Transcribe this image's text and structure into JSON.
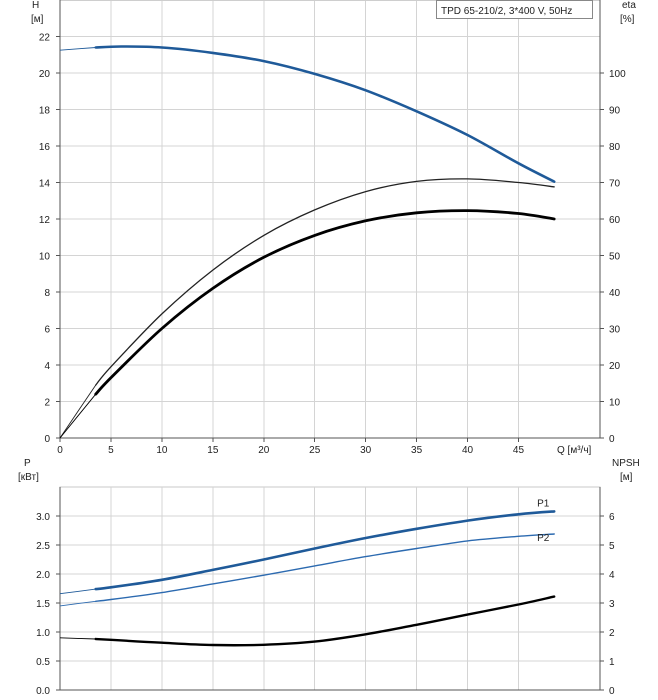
{
  "chart_data": [
    {
      "type": "line",
      "title": "TPD 65-210/2, 3*400 V, 50Hz",
      "xlabel": "Q [м³/ч]",
      "x_unit": "Q [м³/ч]",
      "ylabel_left": "H",
      "ylabel_left_unit": "[м]",
      "ylabel_right": "eta",
      "ylabel_right_unit": "[%]",
      "xlim": [
        0,
        53
      ],
      "ylim_left": [
        0,
        24
      ],
      "ylim_right": [
        0,
        120
      ],
      "x_ticks": [
        0,
        5,
        10,
        15,
        20,
        25,
        30,
        35,
        40,
        45
      ],
      "y_ticks_left": [
        0,
        2,
        4,
        6,
        8,
        10,
        12,
        14,
        16,
        18,
        20,
        22
      ],
      "y_ticks_right": [
        0,
        10,
        20,
        30,
        40,
        50,
        60,
        70,
        80,
        90,
        100
      ],
      "grid": true,
      "series": [
        {
          "name": "",
          "axis": "left",
          "color": "#1f5a99",
          "x": [
            0,
            3.5,
            6,
            10,
            15,
            20,
            25,
            30,
            35,
            40,
            45,
            48.5
          ],
          "values": [
            21.25,
            21.4,
            21.45,
            21.4,
            21.1,
            20.65,
            19.95,
            19.05,
            17.9,
            16.6,
            15.05,
            14.05
          ]
        },
        {
          "name": "",
          "axis": "right",
          "color": "#222222",
          "x": [
            0,
            3.5,
            5,
            10,
            15,
            20,
            25,
            30,
            35,
            40,
            45,
            48.5
          ],
          "values": [
            0,
            14.5,
            19.5,
            34,
            46,
            55.5,
            62.5,
            67.5,
            70.3,
            71,
            70,
            68.8
          ]
        },
        {
          "name": "",
          "axis": "right",
          "color": "#000000",
          "x": [
            0,
            3.5,
            5,
            10,
            15,
            20,
            25,
            30,
            35,
            40,
            45,
            48.5
          ],
          "values": [
            0,
            12,
            16.5,
            30,
            41,
            49.5,
            55.5,
            59.5,
            61.7,
            62.3,
            61.5,
            60
          ]
        }
      ]
    },
    {
      "type": "line",
      "xlabel": "",
      "ylabel_left": "P",
      "ylabel_left_unit": "[кВт]",
      "ylabel_right": "NPSH",
      "ylabel_right_unit": "[м]",
      "xlim": [
        0,
        53
      ],
      "ylim_left": [
        0,
        3.5
      ],
      "ylim_right": [
        0,
        7
      ],
      "y_ticks_left": [
        0.0,
        0.5,
        1.0,
        1.5,
        2.0,
        2.5,
        3.0
      ],
      "y_tick_labels_left": [
        "0.0",
        "0.5",
        "1.0",
        "1.5",
        "2.0",
        "2.5",
        "3.0"
      ],
      "y_ticks_right": [
        0,
        1,
        2,
        3,
        4,
        5,
        6
      ],
      "grid": true,
      "series": [
        {
          "name": "P1",
          "axis": "left",
          "color": "#1f5a99",
          "x": [
            0,
            3.5,
            5,
            10,
            15,
            20,
            25,
            30,
            35,
            40,
            45,
            48.5
          ],
          "values": [
            1.66,
            1.74,
            1.77,
            1.9,
            2.07,
            2.25,
            2.44,
            2.62,
            2.78,
            2.92,
            3.03,
            3.08
          ]
        },
        {
          "name": "P2",
          "axis": "left",
          "color": "#2c6ab0",
          "x": [
            0,
            3.5,
            5,
            10,
            15,
            20,
            25,
            30,
            35,
            40,
            45,
            48.5
          ],
          "values": [
            1.45,
            1.53,
            1.56,
            1.68,
            1.83,
            1.98,
            2.14,
            2.3,
            2.44,
            2.57,
            2.65,
            2.69
          ]
        },
        {
          "name": "",
          "axis": "right",
          "color": "#000000",
          "x": [
            0,
            3.5,
            5,
            10,
            15,
            20,
            25,
            30,
            35,
            40,
            45,
            48.5
          ],
          "values": [
            1.8,
            1.76,
            1.73,
            1.63,
            1.55,
            1.56,
            1.67,
            1.92,
            2.25,
            2.6,
            2.95,
            3.22
          ]
        }
      ]
    }
  ]
}
